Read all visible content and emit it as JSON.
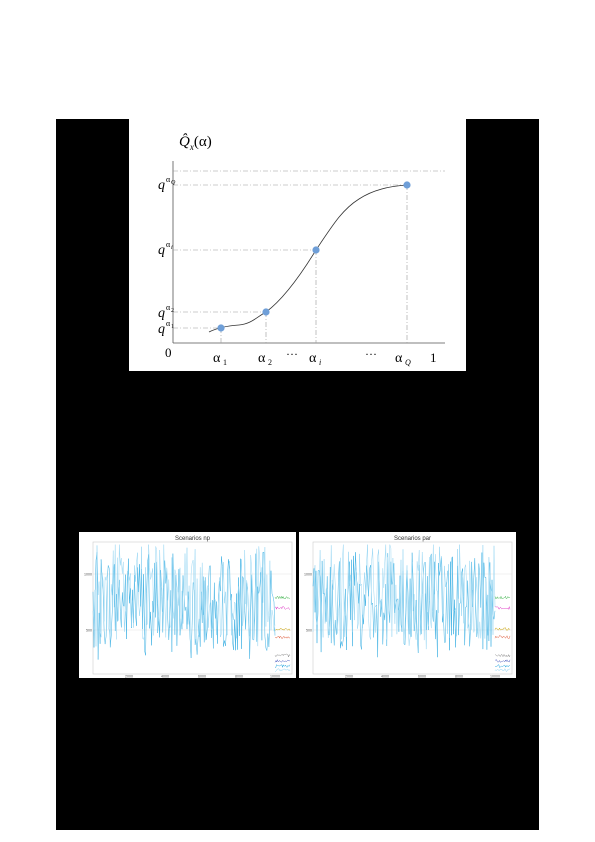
{
  "figure1": {
    "ylabel": "Q̂x(α)",
    "ylabel_main": "Q̂",
    "ylabel_sub": "x",
    "ylabel_arg": "(α)",
    "zero": "0",
    "one": "1",
    "x_ticks": [
      {
        "base": "α",
        "sub": "1"
      },
      {
        "base": "α",
        "sub": "2"
      },
      {
        "base": "···",
        "sub": ""
      },
      {
        "base": "α",
        "sub": "i"
      },
      {
        "base": "···",
        "sub": ""
      },
      {
        "base": "α",
        "sub": "Q"
      }
    ],
    "y_ticks": [
      {
        "base": "q",
        "sup": "α",
        "supsub": "1"
      },
      {
        "base": "q",
        "sup": "α",
        "supsub": "2"
      },
      {
        "base": "q",
        "sup": "α",
        "supsub": "i"
      },
      {
        "base": "q",
        "sup": "α",
        "supsub": "Q"
      }
    ],
    "colors": {
      "point": "#6f9fd8",
      "curve": "#333333",
      "guide": "#9a9a9a"
    }
  },
  "chart_data": [
    {
      "type": "line",
      "title": "Scenarios np",
      "x_tick_labels": [
        "2000",
        "4000",
        "6000",
        "8000",
        "10000"
      ],
      "y_tick_labels": [
        "1000",
        "500"
      ],
      "series_colors": [
        "#29a8e0",
        "#8fd3f2",
        "#3cb44b",
        "#e040c8",
        "#c8a000",
        "#e06040",
        "#909090",
        "#5060c0"
      ]
    },
    {
      "type": "line",
      "title": "Scenarios par",
      "x_tick_labels": [
        "2000",
        "4000",
        "6000",
        "8000",
        "10000"
      ],
      "y_tick_labels": [
        "1000",
        "500"
      ],
      "series_colors": [
        "#29a8e0",
        "#8fd3f2",
        "#3cb44b",
        "#e040c8",
        "#c8a000",
        "#e06040",
        "#909090",
        "#5060c0"
      ]
    }
  ]
}
